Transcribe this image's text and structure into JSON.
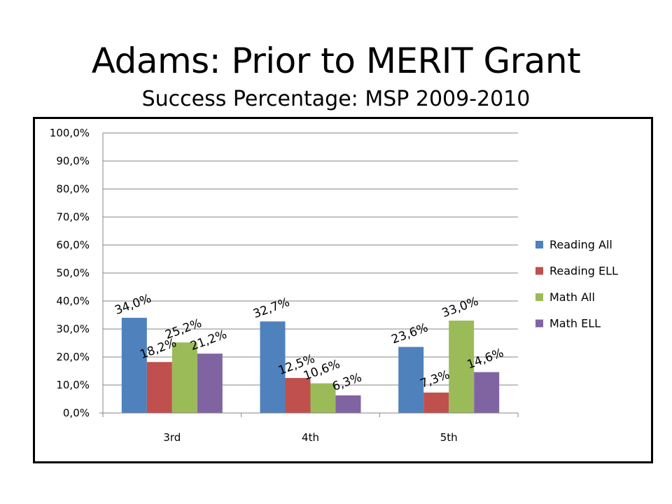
{
  "slide": {
    "title": "Adams: Prior to MERIT Grant",
    "subtitle": "Success Percentage: MSP 2009-2010"
  },
  "chart_data": {
    "type": "bar",
    "title": "Success Percentage: MSP 2009-2010",
    "categories": [
      "3rd",
      "4th",
      "5th"
    ],
    "series": [
      {
        "name": "Reading All",
        "color": "#4F81BD",
        "values": [
          34.0,
          32.7,
          23.6
        ],
        "labels": [
          "34,0%",
          "32,7%",
          "23,6%"
        ]
      },
      {
        "name": "Reading ELL",
        "color": "#C0504D",
        "values": [
          18.2,
          12.5,
          7.3
        ],
        "labels": [
          "18,2%",
          "12,5%",
          "7,3%"
        ]
      },
      {
        "name": "Math All",
        "color": "#9BBB59",
        "values": [
          25.2,
          10.6,
          33.0
        ],
        "labels": [
          "25,2%",
          "10,6%",
          "33,0%"
        ]
      },
      {
        "name": "Math ELL",
        "color": "#8064A2",
        "values": [
          21.2,
          6.3,
          14.6
        ],
        "labels": [
          "21,2%",
          "6,3%",
          "14,6%"
        ]
      }
    ],
    "yticks": [
      "0,0%",
      "10,0%",
      "20,0%",
      "30,0%",
      "40,0%",
      "50,0%",
      "60,0%",
      "70,0%",
      "80,0%",
      "90,0%",
      "100,0%"
    ],
    "ylim": [
      0,
      100
    ],
    "grid": true,
    "legend_position": "right",
    "data_label_rotation_deg": -20
  }
}
